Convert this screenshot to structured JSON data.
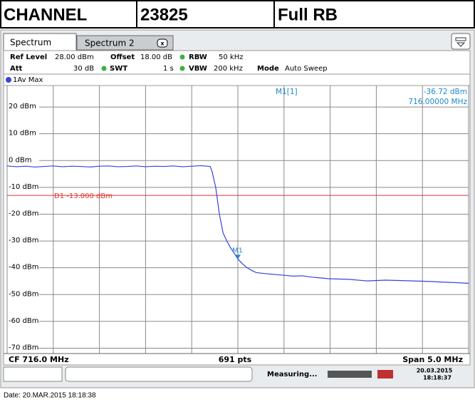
{
  "header": {
    "cells": [
      "CHANNEL",
      "23825",
      "Full RB"
    ]
  },
  "tabs": [
    "Spectrum",
    "Spectrum 2"
  ],
  "settings": {
    "row1": [
      {
        "label": "Ref Level",
        "value": "28.00 dBm"
      },
      {
        "label": "Offset",
        "value": "18.00 dB"
      },
      {
        "label": "RBW",
        "value": "50 kHz"
      }
    ],
    "row2": [
      {
        "label": "Att",
        "value": "30 dB"
      },
      {
        "label": "SWT",
        "value": "1 s"
      },
      {
        "label": "VBW",
        "value": "200 kHz"
      },
      {
        "label": "Mode",
        "value": "Auto Sweep"
      }
    ]
  },
  "chart_data": {
    "type": "line",
    "trace_label": "1Av Max",
    "x": [
      713.5,
      713.6,
      713.7,
      713.8,
      713.9,
      714.0,
      714.1,
      714.2,
      714.3,
      714.4,
      714.5,
      714.6,
      714.7,
      714.8,
      714.9,
      715.0,
      715.1,
      715.2,
      715.3,
      715.4,
      715.5,
      715.6,
      715.7,
      715.72,
      715.76,
      715.8,
      715.84,
      715.88,
      715.92,
      715.96,
      716.0,
      716.05,
      716.1,
      716.15,
      716.2,
      716.3,
      716.4,
      716.5,
      716.6,
      716.7,
      716.8,
      716.9,
      717.0,
      717.2,
      717.4,
      717.6,
      717.8,
      718.0,
      718.2,
      718.4,
      718.5
    ],
    "series": [
      {
        "name": "1Av Max",
        "color": "#3344dd",
        "values": [
          -2.0,
          -2.3,
          -2.1,
          -2.4,
          -2.2,
          -2.0,
          -2.3,
          -2.1,
          -2.2,
          -2.4,
          -2.1,
          -2.0,
          -2.3,
          -2.2,
          -2.0,
          -2.3,
          -2.1,
          -2.2,
          -2.0,
          -2.3,
          -2.1,
          -1.9,
          -2.2,
          -4,
          -10,
          -20,
          -27,
          -30,
          -32.5,
          -34.5,
          -36.72,
          -38.5,
          -40,
          -41,
          -41.8,
          -42.2,
          -42.5,
          -42.8,
          -43.1,
          -43.0,
          -43.5,
          -43.8,
          -44.1,
          -44.3,
          -44.9,
          -44.6,
          -44.8,
          -45.0,
          -45.3,
          -45.6,
          -45.8
        ]
      }
    ],
    "xlim": [
      713.5,
      718.5
    ],
    "xticks": [
      713.5,
      714.0,
      714.5,
      715.0,
      715.5,
      716.0,
      716.5,
      717.0,
      717.5,
      718.0,
      718.5
    ],
    "ylim": [
      -72,
      28
    ],
    "yticks": [
      {
        "value": 20,
        "label": "20 dBm"
      },
      {
        "value": 10,
        "label": "10 dBm"
      },
      {
        "value": 0,
        "label": "0 dBm"
      },
      {
        "value": -10,
        "label": "-10 dBm"
      },
      {
        "value": -20,
        "label": "-20 dBm"
      },
      {
        "value": -30,
        "label": "-30 dBm"
      },
      {
        "value": -40,
        "label": "-40 dBm"
      },
      {
        "value": -50,
        "label": "-50 dBm"
      },
      {
        "value": -60,
        "label": "-60 dBm"
      },
      {
        "value": -70,
        "label": "-70 dBm"
      }
    ],
    "grid": true,
    "display_line": {
      "label": "D1 -13.000 dBm",
      "value": -13,
      "color": "#e03030"
    },
    "marker": {
      "name": "M1",
      "x": 716.0,
      "y": -36.72,
      "readout_title": "M1[1]",
      "y_label": "-36.72 dBm",
      "x_label": "716.00000 MHz",
      "color": "#1e88c8"
    },
    "footer": {
      "left": "CF 716.0 MHz",
      "center": "691 pts",
      "right": "Span 5.0 MHz"
    }
  },
  "status": {
    "text": "Measuring...",
    "date": "20.03.2015",
    "time": "18:18:37"
  },
  "date_line": "Date: 20.MAR.2015  18:18:38"
}
